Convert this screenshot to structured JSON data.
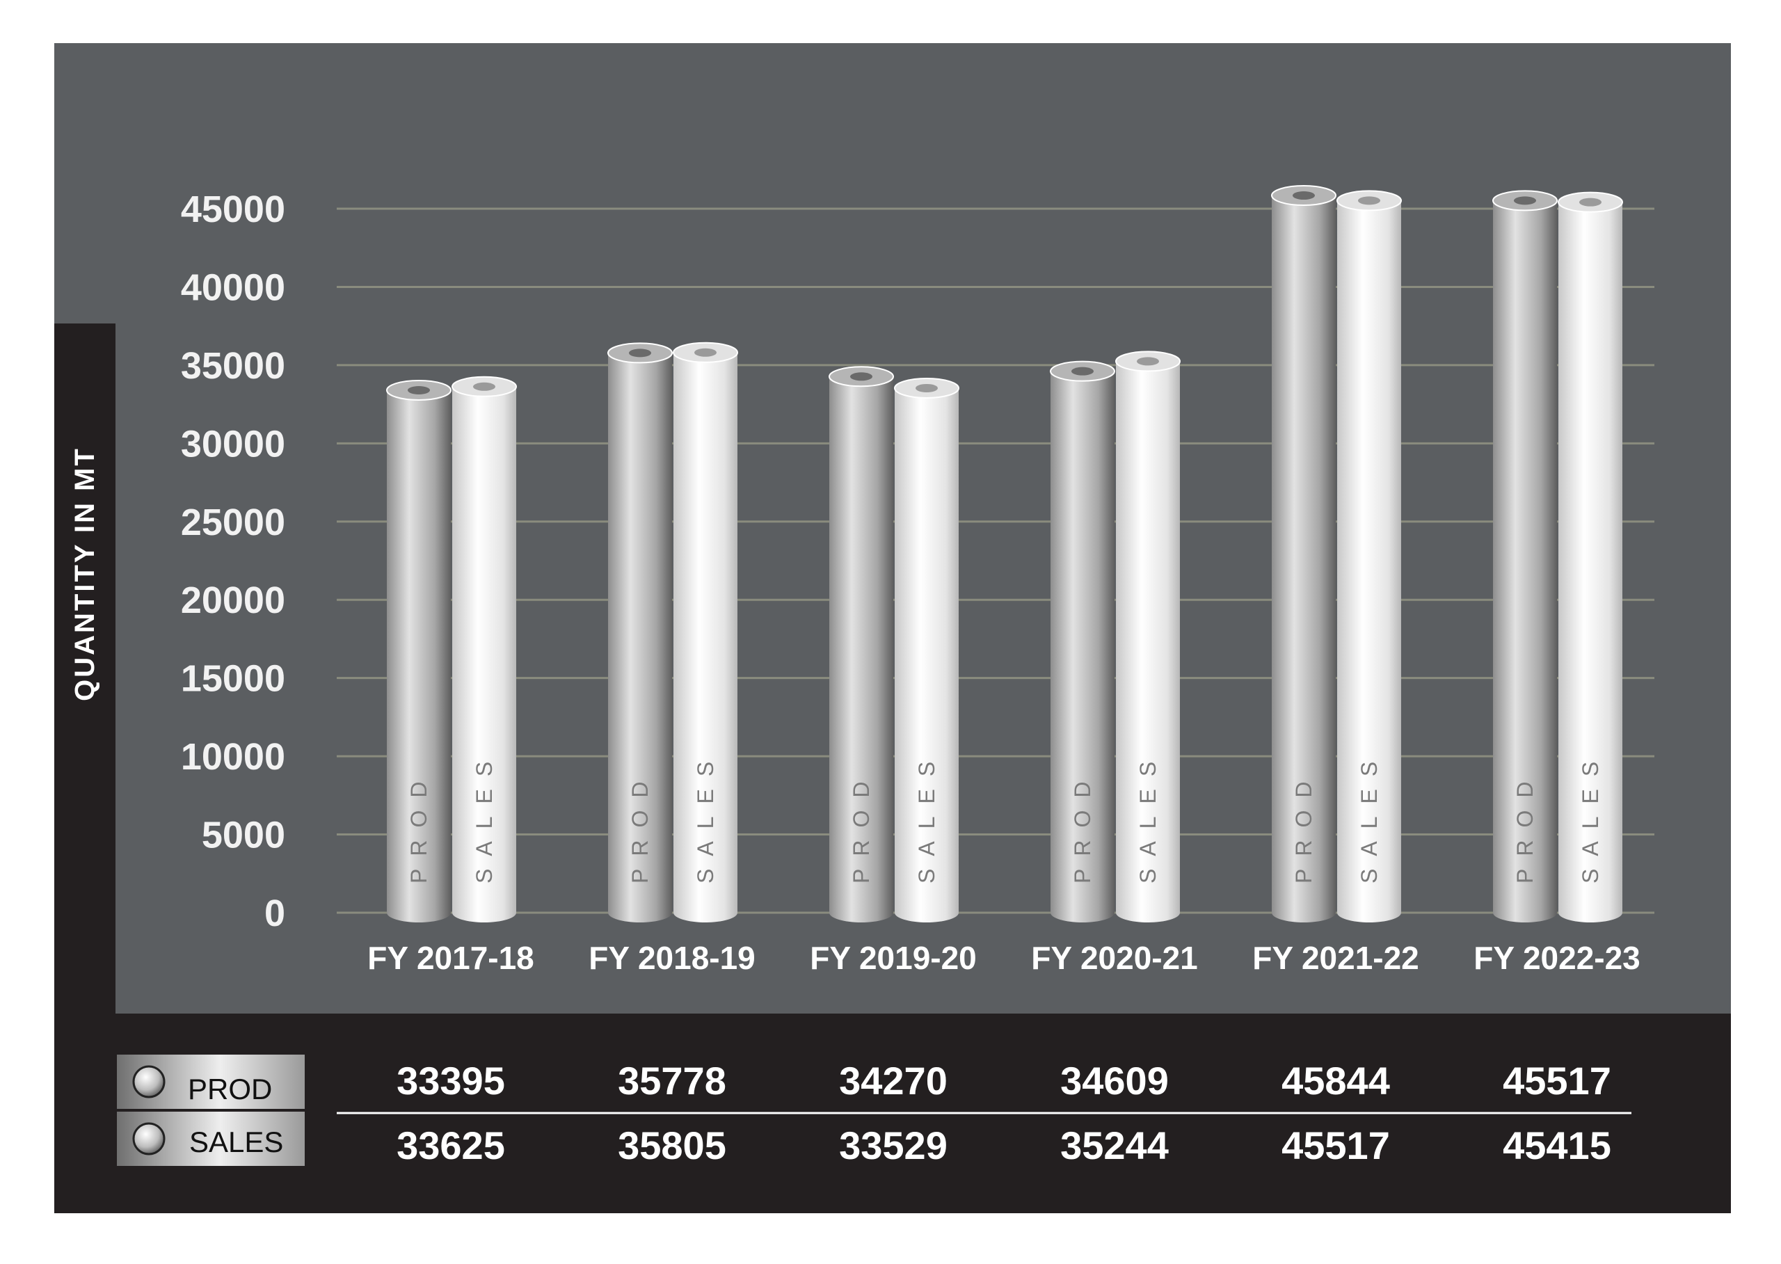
{
  "chart_data": {
    "type": "bar",
    "ylabel": "QUANTITY IN MT",
    "ylim": [
      0,
      45000
    ],
    "yticks": [
      0,
      5000,
      10000,
      15000,
      20000,
      25000,
      30000,
      35000,
      40000,
      45000
    ],
    "grid": true,
    "categories": [
      "FY 2017-18",
      "FY 2018-19",
      "FY 2019-20",
      "FY 2020-21",
      "FY 2021-22",
      "FY 2022-23"
    ],
    "series": [
      {
        "name": "PROD",
        "bar_text": "PROD",
        "values": [
          33395,
          35778,
          34270,
          34609,
          45844,
          45517
        ]
      },
      {
        "name": "SALES",
        "bar_text": "SALES",
        "values": [
          33625,
          35805,
          33529,
          35244,
          45517,
          45415
        ]
      }
    ],
    "legend_position": "bottom-left, as data table row labels"
  },
  "colors": {
    "panel_gray": "#5b5e61",
    "panel_dark": "#231f20",
    "gridline": "#8a8c7e",
    "prod_light": "#cfcfcf",
    "prod_dark": "#6a6a6a",
    "sales_light": "#ffffff",
    "sales_dark": "#bdbdbd"
  }
}
